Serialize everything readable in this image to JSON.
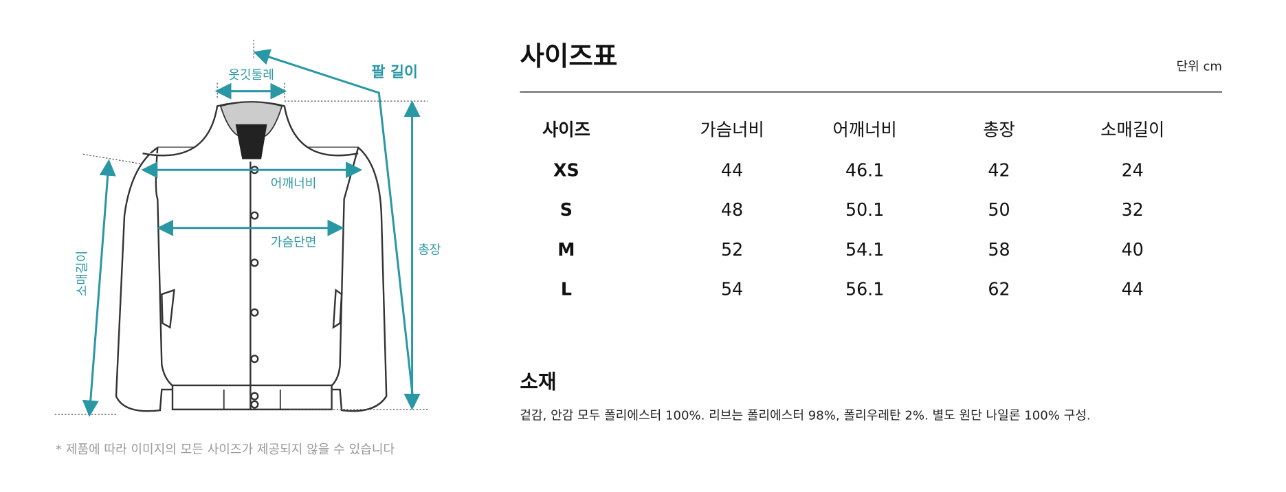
{
  "diagram": {
    "labels": {
      "collar": "옷깃둘레",
      "sleeve": "팔 길이",
      "shoulder": "어깨너비",
      "chest": "가슴단면",
      "length": "총장",
      "sleeve_side": "소매길이"
    },
    "note": "* 제품에 따라 이미지의 모든 사이즈가 제공되지 않을 수 있습니다"
  },
  "size_table": {
    "title": "사이즈표",
    "unit": "단위 cm",
    "header": [
      "사이즈",
      "가슴너비",
      "어깨너비",
      "총장",
      "소매길이"
    ],
    "rows": [
      [
        "XS",
        44,
        46.1,
        42,
        24
      ],
      [
        "S",
        48,
        50.1,
        50,
        32
      ],
      [
        "M",
        52,
        54.1,
        58,
        40
      ],
      [
        "L",
        54,
        56.1,
        62,
        44
      ]
    ]
  },
  "material": {
    "title": "소재",
    "text": "겉감, 안감 모두 폴리에스터 100%. 리브는 폴리에스터 98%, 폴리우레탄 2%. 별도 원단 나일론 100% 구성."
  }
}
